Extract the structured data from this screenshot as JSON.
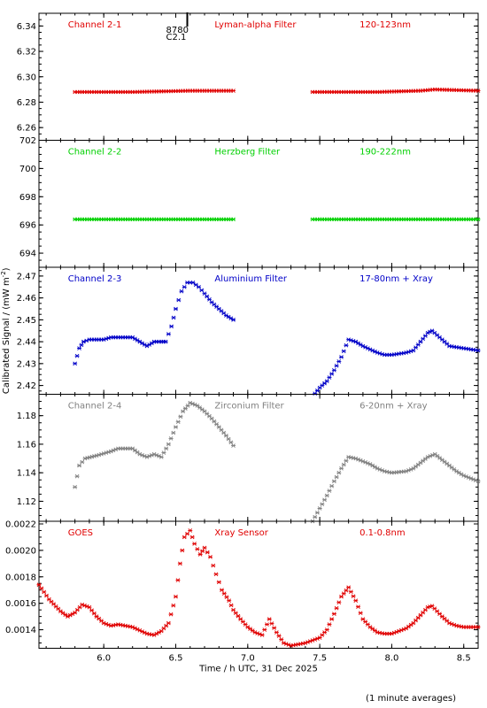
{
  "chart_data": {
    "type": "scatter",
    "xlabel": "Time / h UTC, 31 Dec 2025",
    "ylabel": "Calibrated Signal / (mW m",
    "ylabel_sup": "-2",
    "ylabel_close": ")",
    "footer": "(1 minute averages)",
    "xlim": [
      5.55,
      8.6
    ],
    "xticks": [
      "6.0",
      "6.5",
      "7.0",
      "7.5",
      "8.0",
      "8.5"
    ],
    "marker_text": [
      "8780",
      "C2.1"
    ],
    "marker_x": 6.58,
    "grid": false,
    "panels": [
      {
        "channel": "Channel 2-1",
        "filter": "Lyman-alpha Filter",
        "band": "120-123nm",
        "color": "#e00000",
        "ylim": [
          6.25,
          6.35
        ],
        "yticks": [
          "6.26",
          "6.28",
          "6.30",
          "6.32",
          "6.34"
        ],
        "segments": [
          {
            "x": [
              5.8,
              6.2,
              6.6,
              6.9
            ],
            "y": [
              6.288,
              6.288,
              6.289,
              6.289
            ]
          },
          {
            "x": [
              7.45,
              7.9,
              8.2,
              8.3,
              8.6
            ],
            "y": [
              6.288,
              6.288,
              6.289,
              6.29,
              6.289
            ]
          }
        ]
      },
      {
        "channel": "Channel 2-2",
        "filter": "Herzberg Filter",
        "band": "190-222nm",
        "color": "#00d000",
        "ylim": [
          693,
          702
        ],
        "yticks": [
          "694",
          "696",
          "698",
          "700",
          "702"
        ],
        "segments": [
          {
            "x": [
              5.8,
              6.3,
              6.9
            ],
            "y": [
              696.4,
              696.4,
              696.4
            ]
          },
          {
            "x": [
              7.45,
              8.0,
              8.6
            ],
            "y": [
              696.4,
              696.4,
              696.4
            ]
          }
        ]
      },
      {
        "channel": "Channel 2-3",
        "filter": "Aluminium Filter",
        "band": "17-80nm + Xray",
        "color": "#0000c8",
        "ylim": [
          2.416,
          2.474
        ],
        "yticks": [
          "2.42",
          "2.43",
          "2.44",
          "2.45",
          "2.46",
          "2.47"
        ],
        "segments": [
          {
            "x": [
              5.8,
              5.83,
              5.86,
              5.9,
              6.0,
              6.05,
              6.1,
              6.15,
              6.2,
              6.25,
              6.3,
              6.35,
              6.4,
              6.43,
              6.47,
              6.5,
              6.54,
              6.58,
              6.62,
              6.66,
              6.7,
              6.75,
              6.8,
              6.85,
              6.9
            ],
            "y": [
              2.43,
              2.437,
              2.44,
              2.441,
              2.441,
              2.442,
              2.442,
              2.442,
              2.442,
              2.44,
              2.438,
              2.44,
              2.44,
              2.44,
              2.447,
              2.455,
              2.463,
              2.467,
              2.467,
              2.465,
              2.462,
              2.458,
              2.455,
              2.452,
              2.45
            ]
          },
          {
            "x": [
              7.45,
              7.5,
              7.55,
              7.6,
              7.65,
              7.7,
              7.75,
              7.8,
              7.9,
              7.95,
              8.0,
              8.1,
              8.15,
              8.2,
              8.25,
              8.28,
              8.35,
              8.4,
              8.5,
              8.6
            ],
            "y": [
              2.415,
              2.419,
              2.422,
              2.427,
              2.433,
              2.441,
              2.44,
              2.438,
              2.435,
              2.434,
              2.434,
              2.435,
              2.436,
              2.44,
              2.444,
              2.445,
              2.441,
              2.438,
              2.437,
              2.436
            ]
          }
        ]
      },
      {
        "channel": "Channel 2-4",
        "filter": "Zirconium Filter",
        "band": "6-20nm + Xray",
        "color": "#808080",
        "ylim": [
          1.106,
          1.195
        ],
        "yticks": [
          "1.12",
          "1.14",
          "1.16",
          "1.18"
        ],
        "segments": [
          {
            "x": [
              5.8,
              5.83,
              5.87,
              5.95,
              6.05,
              6.1,
              6.15,
              6.2,
              6.25,
              6.3,
              6.35,
              6.4,
              6.45,
              6.5,
              6.55,
              6.6,
              6.65,
              6.7,
              6.75,
              6.8,
              6.85,
              6.9
            ],
            "y": [
              1.13,
              1.145,
              1.15,
              1.152,
              1.155,
              1.157,
              1.157,
              1.157,
              1.153,
              1.151,
              1.153,
              1.151,
              1.16,
              1.172,
              1.183,
              1.189,
              1.187,
              1.183,
              1.178,
              1.172,
              1.166,
              1.159
            ]
          },
          {
            "x": [
              7.45,
              7.5,
              7.55,
              7.6,
              7.65,
              7.7,
              7.75,
              7.8,
              7.85,
              7.9,
              7.95,
              8.0,
              8.1,
              8.15,
              8.2,
              8.25,
              8.3,
              8.35,
              8.45,
              8.5,
              8.6
            ],
            "y": [
              1.106,
              1.115,
              1.124,
              1.134,
              1.143,
              1.151,
              1.15,
              1.148,
              1.146,
              1.143,
              1.141,
              1.14,
              1.141,
              1.143,
              1.147,
              1.151,
              1.153,
              1.149,
              1.141,
              1.138,
              1.134
            ]
          }
        ]
      },
      {
        "channel": "GOES",
        "filter": "Xray Sensor",
        "band": "0.1-0.8nm",
        "color": "#e00000",
        "ylim": [
          0.00126,
          0.00222
        ],
        "yticks": [
          "0.0014",
          "0.0016",
          "0.0018",
          "0.0020",
          "0.0022"
        ],
        "segments": [
          {
            "x": [
              5.55,
              5.62,
              5.7,
              5.75,
              5.8,
              5.85,
              5.9,
              5.95,
              6.0,
              6.05,
              6.1,
              6.2,
              6.3,
              6.35,
              6.4,
              6.45,
              6.5,
              6.53,
              6.56,
              6.6,
              6.63,
              6.67,
              6.7,
              6.74,
              6.78,
              6.82,
              6.87,
              6.9,
              6.95,
              7.0,
              7.05,
              7.1,
              7.15,
              7.2,
              7.25,
              7.3,
              7.4,
              7.45,
              7.5,
              7.55,
              7.6,
              7.65,
              7.7,
              7.75,
              7.8,
              7.85,
              7.9,
              7.95,
              8.0,
              8.1,
              8.15,
              8.2,
              8.25,
              8.28,
              8.35,
              8.4,
              8.45,
              8.5,
              8.6
            ],
            "y": [
              0.00174,
              0.00163,
              0.00154,
              0.0015,
              0.00153,
              0.00159,
              0.00157,
              0.0015,
              0.00145,
              0.00143,
              0.00144,
              0.00142,
              0.00137,
              0.00136,
              0.00139,
              0.00145,
              0.00165,
              0.0019,
              0.0021,
              0.00215,
              0.00205,
              0.00197,
              0.00202,
              0.00195,
              0.00182,
              0.0017,
              0.00162,
              0.00155,
              0.00148,
              0.00142,
              0.00138,
              0.00136,
              0.00148,
              0.00138,
              0.0013,
              0.00128,
              0.0013,
              0.00132,
              0.00134,
              0.0014,
              0.00152,
              0.00165,
              0.00172,
              0.00162,
              0.00148,
              0.00142,
              0.00138,
              0.00137,
              0.00137,
              0.00141,
              0.00145,
              0.00151,
              0.00157,
              0.00158,
              0.0015,
              0.00145,
              0.00143,
              0.00142,
              0.00142
            ]
          }
        ]
      }
    ]
  }
}
